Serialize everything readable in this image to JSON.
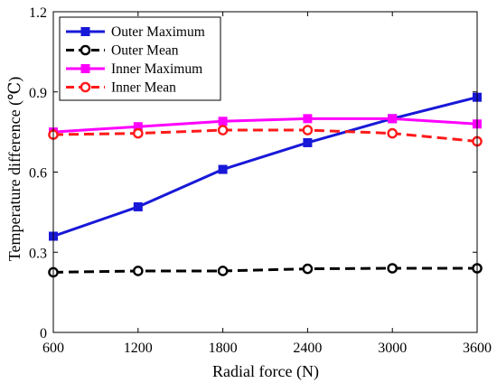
{
  "chart_data": {
    "type": "line",
    "xlabel": "Radial force (N)",
    "ylabel": "Temperature difference (℃)",
    "x": [
      600,
      1200,
      1800,
      2400,
      3000,
      3600
    ],
    "xlim": [
      600,
      3600
    ],
    "ylim": [
      0,
      1.2
    ],
    "x_ticks": [
      "600",
      "1200",
      "1800",
      "2400",
      "3000",
      "3600"
    ],
    "y_ticks": [
      "0",
      "0.3",
      "0.6",
      "0.9",
      "1.2"
    ],
    "grid": false,
    "legend_position": "top-left",
    "series": [
      {
        "name": "Outer Maximum",
        "values": [
          0.36,
          0.47,
          0.61,
          0.71,
          0.8,
          0.88
        ],
        "color": "#1818d8",
        "dash": "solid",
        "marker": "square"
      },
      {
        "name": "Outer Mean",
        "values": [
          0.225,
          0.23,
          0.23,
          0.238,
          0.24,
          0.24
        ],
        "color": "#000000",
        "dash": "dashed",
        "marker": "circle"
      },
      {
        "name": "Inner Maximum",
        "values": [
          0.75,
          0.77,
          0.79,
          0.8,
          0.8,
          0.78
        ],
        "color": "#ff00ff",
        "dash": "solid",
        "marker": "square"
      },
      {
        "name": "Inner Mean",
        "values": [
          0.74,
          0.745,
          0.757,
          0.757,
          0.745,
          0.715
        ],
        "color": "#ff1a1a",
        "dash": "dashed",
        "marker": "circle"
      }
    ]
  }
}
